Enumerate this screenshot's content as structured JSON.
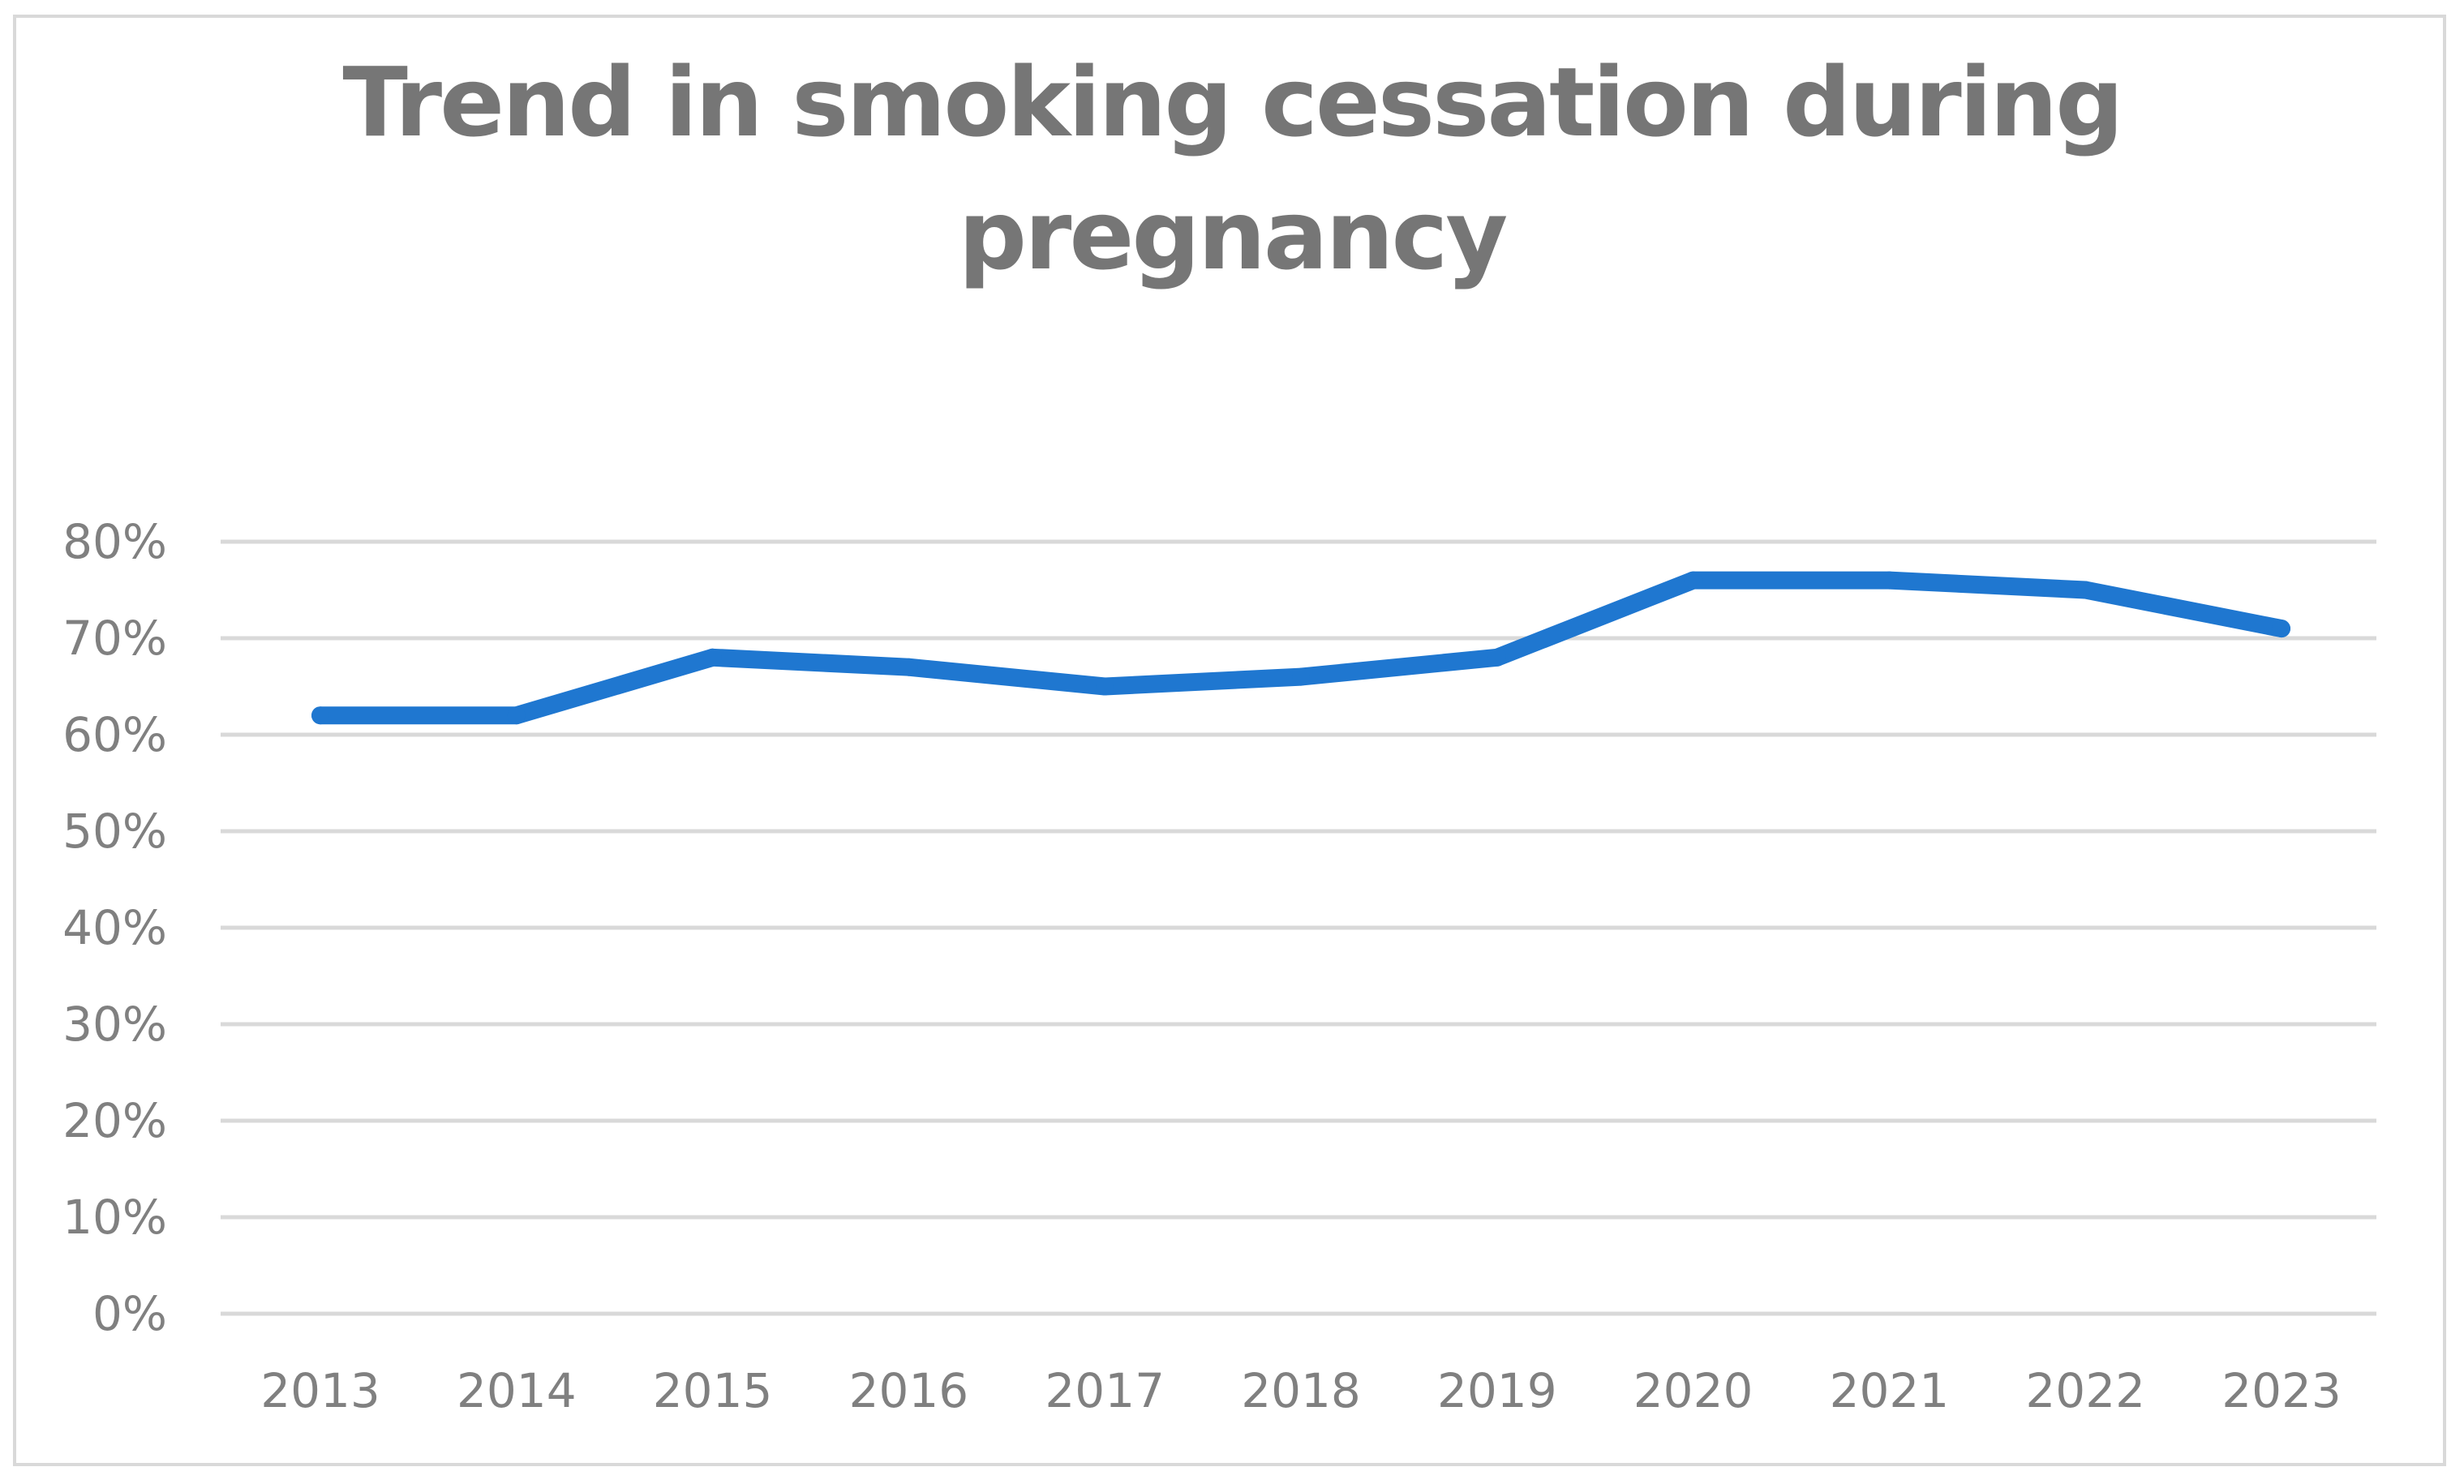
{
  "chart_data": {
    "type": "line",
    "title": "Trend in smoking cessation during pregnancy",
    "title_lines": [
      "Trend in smoking cessation during",
      "pregnancy"
    ],
    "xlabel": "",
    "ylabel": "",
    "categories": [
      "2013",
      "2014",
      "2015",
      "2016",
      "2017",
      "2018",
      "2019",
      "2020",
      "2021",
      "2022",
      "2023"
    ],
    "series": [
      {
        "color": "#1f77d0",
        "values": [
          62,
          62,
          68,
          67,
          65,
          66,
          68,
          76,
          76,
          75,
          71
        ]
      }
    ],
    "ylim": [
      0,
      80
    ],
    "yticks": [
      0,
      10,
      20,
      30,
      40,
      50,
      60,
      70,
      80
    ],
    "ytick_labels": [
      "0%",
      "10%",
      "20%",
      "30%",
      "40%",
      "50%",
      "60%",
      "70%",
      "80%"
    ],
    "grid": true,
    "legend": "none"
  }
}
